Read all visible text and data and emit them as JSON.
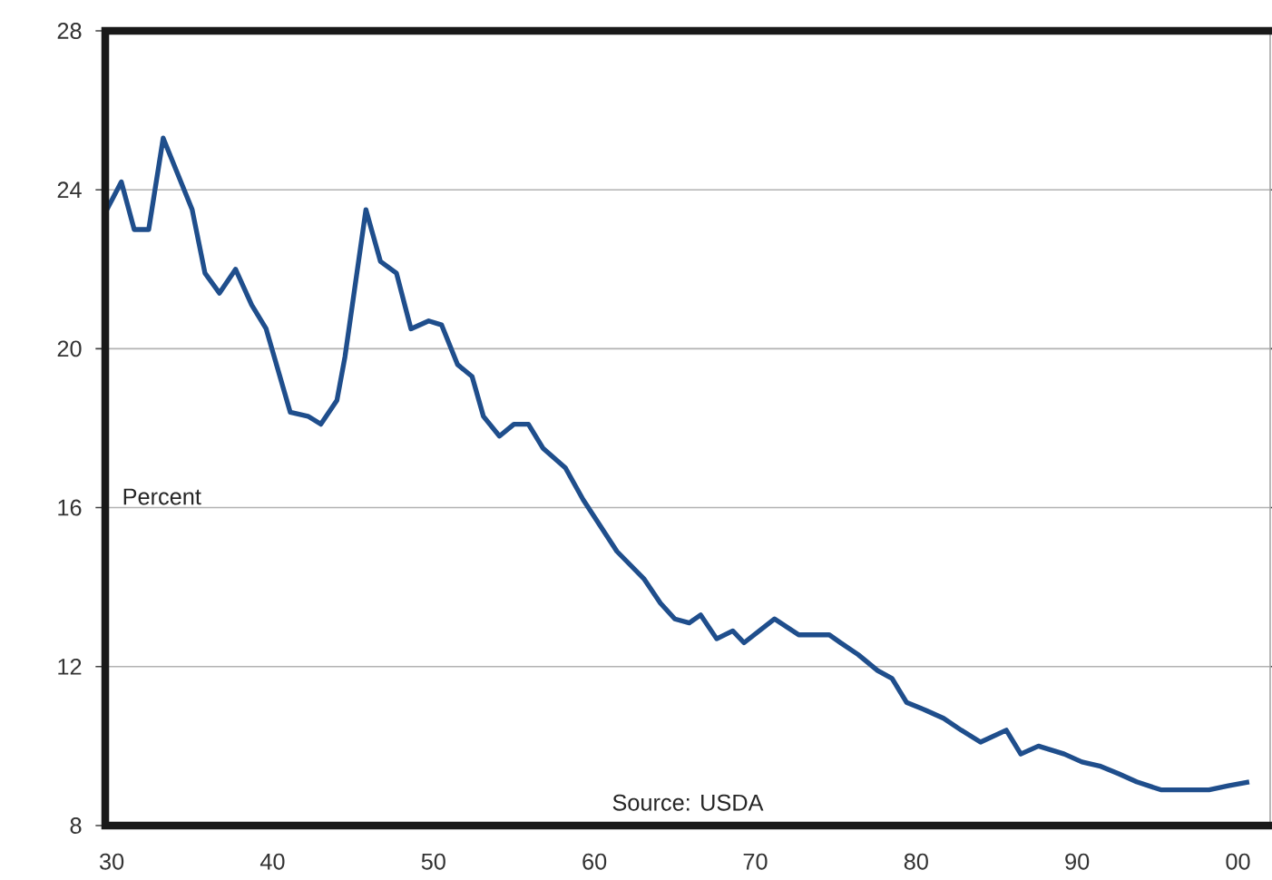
{
  "chart_data": {
    "type": "line",
    "ylabel": "Percent",
    "annotations": [
      "Source: USDA"
    ],
    "x": [
      1929.7,
      1930.6,
      1931.4,
      1932.3,
      1933.2,
      1934.4,
      1935.0,
      1935.8,
      1936.7,
      1937.7,
      1938.7,
      1939.6,
      1941.1,
      1942.2,
      1943.0,
      1944.0,
      1944.5,
      1945.8,
      1946.7,
      1947.7,
      1948.6,
      1949.7,
      1950.5,
      1951.5,
      1952.4,
      1953.1,
      1954.1,
      1955.0,
      1955.9,
      1956.8,
      1958.2,
      1959.3,
      1961.4,
      1963.1,
      1964.1,
      1965.0,
      1965.9,
      1966.6,
      1967.6,
      1968.6,
      1969.3,
      1971.2,
      1972.7,
      1974.6,
      1975.3,
      1976.4,
      1977.6,
      1978.5,
      1979.4,
      1980.6,
      1981.7,
      1982.8,
      1984.0,
      1985.6,
      1986.5,
      1987.6,
      1989.2,
      1990.3,
      1991.4,
      1992.6,
      1993.7,
      1995.2,
      1997.1,
      1998.2,
      1999.4,
      2000.7
    ],
    "series": [
      {
        "color": "#1f4e8c",
        "values": [
          23.5,
          24.2,
          23.0,
          23.0,
          25.3,
          24.1,
          23.5,
          21.9,
          21.4,
          22.0,
          21.1,
          20.5,
          18.4,
          18.3,
          18.1,
          18.7,
          19.8,
          23.5,
          22.2,
          21.9,
          20.5,
          20.7,
          20.6,
          19.6,
          19.3,
          18.3,
          17.8,
          18.1,
          18.1,
          17.5,
          17.0,
          16.2,
          14.9,
          14.2,
          13.6,
          13.2,
          13.1,
          13.3,
          12.7,
          12.9,
          12.6,
          13.2,
          12.8,
          12.8,
          12.6,
          12.3,
          11.9,
          11.7,
          11.1,
          10.9,
          10.7,
          10.4,
          10.1,
          10.4,
          9.8,
          10.0,
          9.8,
          9.6,
          9.5,
          9.3,
          9.1,
          8.9,
          8.9,
          8.9,
          9.0,
          9.1
        ]
      }
    ],
    "xlim": [
      1929.6,
      2002
    ],
    "ylim": [
      8,
      28
    ],
    "xticks": [
      {
        "value": 1930,
        "label": "30"
      },
      {
        "value": 1940,
        "label": "40"
      },
      {
        "value": 1950,
        "label": "50"
      },
      {
        "value": 1960,
        "label": "60"
      },
      {
        "value": 1970,
        "label": "70"
      },
      {
        "value": 1980,
        "label": "80"
      },
      {
        "value": 1990,
        "label": "90"
      },
      {
        "value": 2000,
        "label": "00"
      }
    ],
    "yticks": [
      8,
      12,
      16,
      20,
      24,
      28
    ],
    "grid": "y",
    "marker": "none",
    "line_style": "solid"
  }
}
